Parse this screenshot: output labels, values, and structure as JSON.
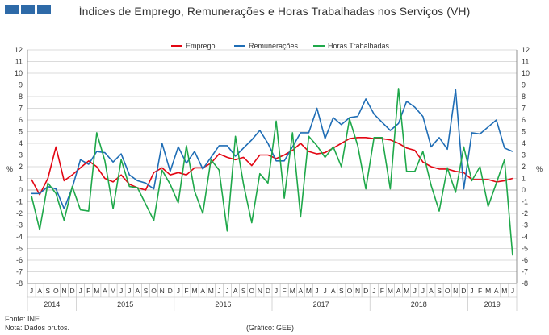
{
  "header": {
    "title": "Índices de Emprego, Remunerações e Horas Trabalhadas nos Serviços (VH)"
  },
  "footer": {
    "source": "Fonte: INE",
    "note": "Nota: Dados brutos.",
    "credit": "(Gráfico: GEE)"
  },
  "colors": {
    "emprego": "#e30613",
    "remuneracoes": "#1f6db5",
    "horas": "#1fa84a",
    "grid": "#cfcfcf",
    "logo": "#2e6aa8"
  },
  "chart_data": {
    "type": "line",
    "title": "Índices de Emprego, Remunerações e Horas Trabalhadas nos Serviços (VH)",
    "ylabel_left": "%",
    "ylabel_right": "%",
    "ylim": [
      -8,
      12
    ],
    "yticks": [
      -8,
      -7,
      -6,
      -5,
      -4,
      -3,
      -2,
      -1,
      0,
      1,
      2,
      3,
      4,
      5,
      6,
      7,
      8,
      9,
      10,
      11,
      12
    ],
    "grid": "horizontal",
    "legend_position": "top-center",
    "month_labels": [
      "J",
      "A",
      "S",
      "O",
      "N",
      "D",
      "J",
      "F",
      "M",
      "A",
      "M",
      "J",
      "J",
      "A",
      "S",
      "O",
      "N",
      "D",
      "J",
      "F",
      "M",
      "A",
      "M",
      "J",
      "J",
      "A",
      "S",
      "O",
      "N",
      "D",
      "J",
      "F",
      "M",
      "A",
      "M",
      "J",
      "J",
      "A",
      "S",
      "O",
      "N",
      "D",
      "J",
      "F",
      "M",
      "A",
      "M",
      "J",
      "J",
      "A",
      "S",
      "O",
      "N",
      "D",
      "J",
      "F",
      "M",
      "A",
      "M",
      "J"
    ],
    "years": [
      {
        "label": "2014",
        "start": 0,
        "end": 5
      },
      {
        "label": "2015",
        "start": 6,
        "end": 17
      },
      {
        "label": "2016",
        "start": 18,
        "end": 29
      },
      {
        "label": "2017",
        "start": 30,
        "end": 41
      },
      {
        "label": "2018",
        "start": 42,
        "end": 53
      },
      {
        "label": "2019",
        "start": 54,
        "end": 59
      }
    ],
    "series": [
      {
        "name": "Emprego",
        "color": "#e30613",
        "values": [
          0.9,
          -0.4,
          1.0,
          3.7,
          0.8,
          1.3,
          1.9,
          2.5,
          2.0,
          1.0,
          0.7,
          1.3,
          0.5,
          0.2,
          0.0,
          1.5,
          1.9,
          1.3,
          1.5,
          1.3,
          1.9,
          1.9,
          2.3,
          3.1,
          2.8,
          2.6,
          2.8,
          2.1,
          3.0,
          3.0,
          2.7,
          3.0,
          3.4,
          4.0,
          3.3,
          3.1,
          3.2,
          3.6,
          4.0,
          4.4,
          4.5,
          4.5,
          4.4,
          4.4,
          4.3,
          4.0,
          3.6,
          3.4,
          2.4,
          2.0,
          1.8,
          1.8,
          1.6,
          1.5,
          0.9,
          0.9,
          0.9,
          0.7,
          0.8,
          1.0
        ]
      },
      {
        "name": "Remunerações",
        "color": "#1f6db5",
        "values": [
          -0.3,
          -0.3,
          0.3,
          0.1,
          -1.6,
          0.2,
          2.6,
          2.2,
          3.3,
          3.2,
          2.4,
          3.1,
          1.3,
          0.8,
          0.6,
          0.1,
          4.0,
          1.6,
          3.7,
          2.3,
          3.3,
          1.8,
          2.8,
          3.8,
          3.8,
          2.9,
          3.6,
          4.3,
          5.1,
          4.0,
          2.5,
          2.5,
          3.7,
          4.9,
          4.9,
          7.0,
          4.4,
          6.2,
          5.6,
          6.2,
          6.3,
          7.8,
          6.5,
          5.8,
          5.1,
          5.7,
          7.6,
          7.1,
          6.3,
          3.7,
          4.5,
          3.5,
          8.6,
          0.1,
          4.9,
          4.8,
          5.4,
          6.0,
          3.6,
          3.3
        ]
      },
      {
        "name": "Horas Trabalhadas",
        "color": "#1fa84a",
        "values": [
          -0.5,
          -3.4,
          0.6,
          -0.3,
          -2.6,
          0.3,
          -1.7,
          -1.8,
          4.9,
          2.5,
          -1.6,
          2.6,
          0.3,
          0.2,
          -1.2,
          -2.6,
          1.7,
          0.5,
          -1.1,
          3.8,
          -0.1,
          -2.0,
          2.6,
          1.7,
          -3.5,
          4.6,
          0.5,
          -2.8,
          1.4,
          0.6,
          5.9,
          -0.7,
          4.9,
          -2.3,
          4.6,
          3.8,
          2.8,
          3.7,
          2.0,
          6.1,
          3.8,
          0.1,
          4.5,
          4.5,
          0.1,
          8.7,
          1.6,
          1.6,
          3.3,
          0.4,
          -1.8,
          1.9,
          -0.2,
          3.7,
          0.8,
          2.0,
          -1.4,
          0.6,
          2.6,
          -5.6
        ]
      }
    ]
  }
}
